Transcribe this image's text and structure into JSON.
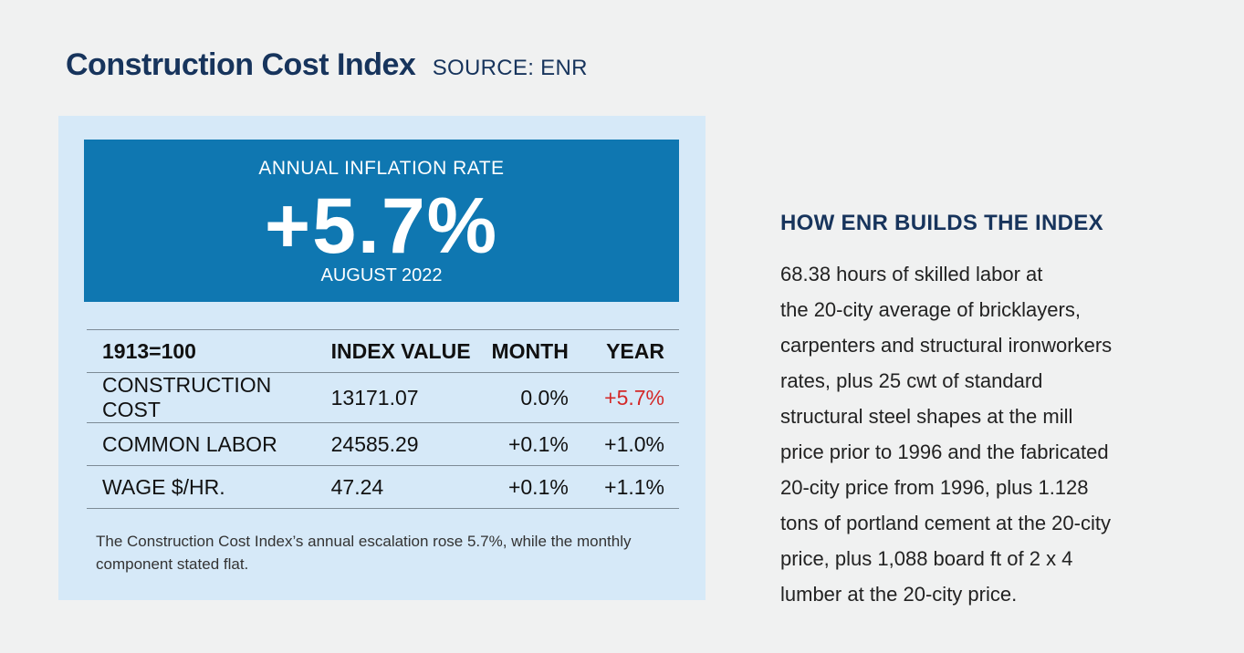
{
  "header": {
    "title": "Construction Cost Index",
    "source": "SOURCE: ENR"
  },
  "banner": {
    "label": "ANNUAL INFLATION RATE",
    "rate": "+5.7%",
    "date": "AUGUST 2022"
  },
  "table": {
    "headers": [
      "1913=100",
      "INDEX VALUE",
      "MONTH",
      "YEAR"
    ],
    "rows": [
      [
        "CONSTRUCTION COST",
        "13171.07",
        "0.0%",
        "+5.7%"
      ],
      [
        "COMMON LABOR",
        "24585.29",
        "+0.1%",
        "+1.0%"
      ],
      [
        "WAGE $/HR.",
        "47.24",
        "+0.1%",
        "+1.1%"
      ]
    ]
  },
  "note": "The Construction Cost Index’s annual escalation rose 5.7%, while the monthly component stated flat.",
  "how": {
    "title": "HOW ENR BUILDS THE INDEX",
    "lines": [
      "68.38 hours of skilled labor at",
      "the 20-city average of bricklayers,",
      "carpenters and structural ironworkers",
      "rates, plus 25 cwt of standard",
      "structural steel shapes at the mill",
      "price prior to 1996 and the fabricated",
      "20-city price from 1996, plus 1.128",
      "tons of portland cement at the 20-city",
      "price, plus 1,088 board ft of 2 x 4",
      "lumber at the 20-city price."
    ]
  },
  "colors": {
    "title": "#17345c",
    "banner": "#0f77b1",
    "panel": "#d6e9f8",
    "positive_highlight": "#d42828"
  }
}
